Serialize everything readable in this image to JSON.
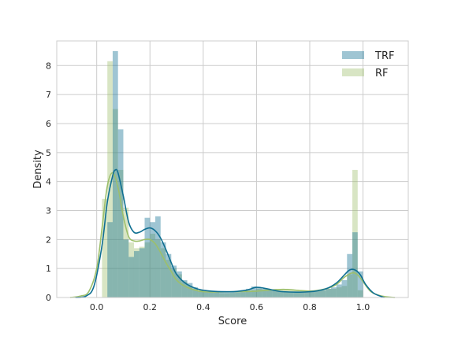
{
  "chart_data": {
    "type": "histogram",
    "title": "",
    "xlabel": "Score",
    "ylabel": "Density",
    "xlim": [
      -0.15,
      1.17
    ],
    "ylim": [
      0,
      8.85
    ],
    "xticks": [
      0.0,
      0.2,
      0.4,
      0.6,
      0.8,
      1.0
    ],
    "xtick_labels": [
      "0.0",
      "0.2",
      "0.4",
      "0.6",
      "0.8",
      "1.0"
    ],
    "yticks": [
      0,
      1,
      2,
      3,
      4,
      5,
      6,
      7,
      8
    ],
    "ytick_labels": [
      "0",
      "1",
      "2",
      "3",
      "4",
      "5",
      "6",
      "7",
      "8"
    ],
    "grid": true,
    "legend_position": "top-right",
    "bin_width": 0.02,
    "series": [
      {
        "name": "RF",
        "color": "#9dbf6b",
        "bin_starts": [
          0.02,
          0.04,
          0.06,
          0.08,
          0.1,
          0.12,
          0.14,
          0.16,
          0.18,
          0.2,
          0.22,
          0.24,
          0.26,
          0.28,
          0.3,
          0.32,
          0.34,
          0.36,
          0.38,
          0.4,
          0.42,
          0.44,
          0.46,
          0.48,
          0.5,
          0.52,
          0.54,
          0.56,
          0.58,
          0.6,
          0.62,
          0.64,
          0.66,
          0.68,
          0.7,
          0.72,
          0.74,
          0.76,
          0.78,
          0.8,
          0.82,
          0.84,
          0.86,
          0.88,
          0.9,
          0.92,
          0.94,
          0.96,
          0.98
        ],
        "values": [
          3.4,
          8.15,
          6.5,
          4.4,
          3.1,
          1.9,
          1.7,
          1.75,
          1.9,
          2.2,
          2.0,
          1.7,
          1.3,
          1.0,
          0.8,
          0.55,
          0.4,
          0.3,
          0.25,
          0.2,
          0.18,
          0.17,
          0.15,
          0.15,
          0.16,
          0.17,
          0.18,
          0.2,
          0.25,
          0.3,
          0.28,
          0.25,
          0.25,
          0.26,
          0.3,
          0.28,
          0.27,
          0.25,
          0.25,
          0.25,
          0.25,
          0.26,
          0.3,
          0.3,
          0.35,
          0.4,
          0.8,
          4.4,
          0.25
        ],
        "kde_x": [
          -0.1,
          -0.06,
          -0.03,
          0.0,
          0.02,
          0.04,
          0.06,
          0.08,
          0.1,
          0.12,
          0.14,
          0.16,
          0.18,
          0.2,
          0.22,
          0.24,
          0.26,
          0.28,
          0.3,
          0.34,
          0.4,
          0.5,
          0.6,
          0.7,
          0.8,
          0.86,
          0.9,
          0.93,
          0.96,
          0.98,
          1.0,
          1.03,
          1.07,
          1.12
        ],
        "kde_y": [
          0.0,
          0.05,
          0.2,
          1.0,
          2.4,
          3.85,
          4.3,
          3.8,
          2.8,
          2.1,
          1.95,
          1.95,
          2.0,
          2.0,
          1.85,
          1.55,
          1.2,
          0.9,
          0.6,
          0.35,
          0.2,
          0.2,
          0.22,
          0.28,
          0.22,
          0.3,
          0.45,
          0.7,
          0.85,
          0.78,
          0.55,
          0.2,
          0.05,
          0.0
        ]
      },
      {
        "name": "TRF",
        "color": "#0f6f92",
        "bin_starts": [
          0.04,
          0.06,
          0.08,
          0.1,
          0.12,
          0.14,
          0.16,
          0.18,
          0.2,
          0.22,
          0.24,
          0.26,
          0.28,
          0.3,
          0.32,
          0.34,
          0.36,
          0.38,
          0.4,
          0.42,
          0.44,
          0.46,
          0.48,
          0.5,
          0.52,
          0.54,
          0.56,
          0.58,
          0.6,
          0.62,
          0.64,
          0.66,
          0.68,
          0.7,
          0.72,
          0.74,
          0.76,
          0.78,
          0.8,
          0.82,
          0.84,
          0.86,
          0.88,
          0.9,
          0.92,
          0.94,
          0.96,
          0.98
        ],
        "values": [
          2.6,
          8.5,
          5.8,
          2.0,
          1.4,
          1.6,
          1.7,
          2.75,
          2.6,
          2.8,
          1.9,
          1.5,
          1.1,
          0.9,
          0.6,
          0.5,
          0.35,
          0.25,
          0.2,
          0.2,
          0.18,
          0.18,
          0.18,
          0.2,
          0.22,
          0.25,
          0.3,
          0.38,
          0.35,
          0.3,
          0.28,
          0.25,
          0.22,
          0.2,
          0.2,
          0.2,
          0.2,
          0.2,
          0.2,
          0.22,
          0.25,
          0.3,
          0.35,
          0.45,
          0.6,
          1.5,
          2.25,
          0.9
        ],
        "kde_x": [
          -0.08,
          -0.04,
          -0.01,
          0.02,
          0.04,
          0.06,
          0.07,
          0.08,
          0.1,
          0.12,
          0.14,
          0.16,
          0.18,
          0.2,
          0.22,
          0.24,
          0.26,
          0.28,
          0.3,
          0.34,
          0.4,
          0.5,
          0.56,
          0.6,
          0.64,
          0.7,
          0.8,
          0.86,
          0.9,
          0.93,
          0.95,
          0.97,
          0.99,
          1.01,
          1.04,
          1.08
        ],
        "kde_y": [
          0.0,
          0.05,
          0.4,
          1.8,
          3.3,
          4.2,
          4.4,
          4.3,
          3.5,
          2.6,
          2.25,
          2.25,
          2.35,
          2.4,
          2.3,
          2.05,
          1.65,
          1.2,
          0.8,
          0.45,
          0.25,
          0.2,
          0.25,
          0.35,
          0.3,
          0.2,
          0.2,
          0.3,
          0.5,
          0.78,
          0.95,
          0.95,
          0.78,
          0.45,
          0.15,
          0.0
        ]
      }
    ],
    "legend": [
      {
        "label": "TRF",
        "color": "#0f6f92"
      },
      {
        "label": "RF",
        "color": "#9dbf6b"
      }
    ]
  }
}
